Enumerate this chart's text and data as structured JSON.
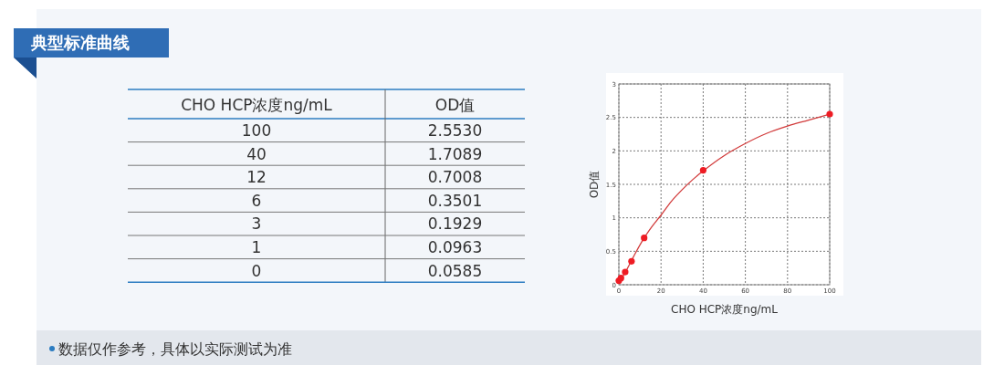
{
  "chart_data": [
    {
      "type": "other",
      "title": "典型标准曲线",
      "xlabel": "CHO HCP浓度ng/mL",
      "ylabel": "OD值",
      "annotations": [
        "数据仅作参考，具体以实际测试为准"
      ],
      "categories": [
        "100",
        "40",
        "12",
        "6",
        "3",
        "1",
        "0"
      ],
      "value_labels": [
        "2.5530",
        "1.7089",
        "0.7008",
        "0.3501",
        "0.1929",
        "0.0963",
        "0.0585"
      ]
    },
    {
      "type": "scatter",
      "xlabel": "CHO HCP浓度ng/mL",
      "ylabel": "OD值",
      "series": [
        {
          "type": "scatter",
          "color": "#ee1c24",
          "x": [
            0,
            1,
            3,
            6,
            12,
            40,
            100
          ],
          "values": [
            0.06,
            0.1,
            0.19,
            0.35,
            0.7,
            1.71,
            2.55
          ]
        },
        {
          "type": "line",
          "color": "#d23c3c",
          "marker": "none",
          "x": [
            0,
            2,
            5,
            8,
            12,
            16,
            20,
            25,
            30,
            35,
            40,
            50,
            60,
            70,
            80,
            90,
            100
          ],
          "values": [
            0.06,
            0.13,
            0.3,
            0.48,
            0.7,
            0.88,
            1.04,
            1.25,
            1.42,
            1.57,
            1.7,
            1.93,
            2.11,
            2.26,
            2.37,
            2.46,
            2.55
          ]
        }
      ],
      "xlim": [
        0,
        100
      ],
      "xticks": [
        0,
        20,
        40,
        60,
        80,
        100
      ],
      "ylim": [
        0,
        3
      ],
      "yticks": [
        0,
        0.5,
        1,
        1.5,
        2,
        2.5,
        3
      ],
      "grid": true,
      "marker": "circle",
      "line_style": "solid"
    }
  ]
}
